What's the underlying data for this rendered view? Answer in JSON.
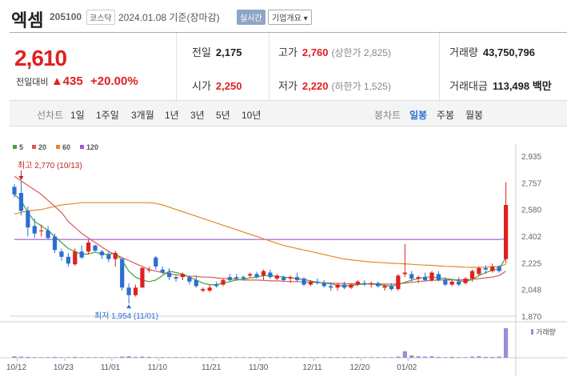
{
  "header": {
    "name": "엑셈",
    "code": "205100",
    "market": "코스닥",
    "date": "2024.01.08",
    "basis": "기준(장마감)",
    "realtime": "실시간",
    "company_info": "기업개요 ▾"
  },
  "quote": {
    "price": "2,610",
    "compare_label": "전일대비",
    "change": "▲435",
    "change_pct": "+20.00%",
    "prev_label": "전일",
    "prev": "2,175",
    "high_label": "고가",
    "high": "2,760",
    "upper_limit": "(상한가 2,825)",
    "volume_label": "거래량",
    "volume": "43,750,796",
    "open_label": "시가",
    "open": "2,250",
    "low_label": "저가",
    "low": "2,220",
    "lower_limit": "(하한가 1,525)",
    "amount_label": "거래대금",
    "amount": "113,498 백만"
  },
  "toolbar": {
    "line_chart": "선차트",
    "periods": [
      "1일",
      "1주일",
      "3개월",
      "1년",
      "3년",
      "5년",
      "10년"
    ],
    "candle_chart": "봉차트",
    "candle_periods": [
      "일봉",
      "주봉",
      "월봉"
    ],
    "selected_candle": "일봉"
  },
  "chart_data": {
    "type": "candlestick",
    "legend": [
      {
        "name": "5",
        "color": "#3aa53a"
      },
      {
        "name": "20",
        "color": "#e05555"
      },
      {
        "name": "60",
        "color": "#e08a2a"
      },
      {
        "name": "120",
        "color": "#9b59d0"
      }
    ],
    "y_ticks": [
      2935,
      2757,
      2580,
      2402,
      2225,
      2048,
      1870
    ],
    "ylim": [
      1870,
      2935
    ],
    "x_ticks": [
      "10/12",
      "10/23",
      "11/01",
      "11/10",
      "11/21",
      "11/30",
      "12/11",
      "12/20",
      "01/02"
    ],
    "annot_high": "최고 2,770 (10/13)",
    "annot_low": "최저 1,954 (11/01)",
    "volume_label": "거래량",
    "up_color": "#e02020",
    "down_color": "#2b6fd4",
    "candles": [
      {
        "o": 2730,
        "h": 2750,
        "l": 2660,
        "c": 2680
      },
      {
        "o": 2690,
        "h": 2770,
        "l": 2540,
        "c": 2570
      },
      {
        "o": 2570,
        "h": 2600,
        "l": 2400,
        "c": 2460
      },
      {
        "o": 2470,
        "h": 2520,
        "l": 2390,
        "c": 2420
      },
      {
        "o": 2440,
        "h": 2480,
        "l": 2400,
        "c": 2440
      },
      {
        "o": 2440,
        "h": 2470,
        "l": 2380,
        "c": 2390
      },
      {
        "o": 2400,
        "h": 2420,
        "l": 2290,
        "c": 2310
      },
      {
        "o": 2300,
        "h": 2320,
        "l": 2240,
        "c": 2265
      },
      {
        "o": 2265,
        "h": 2290,
        "l": 2200,
        "c": 2220
      },
      {
        "o": 2215,
        "h": 2320,
        "l": 2205,
        "c": 2300
      },
      {
        "o": 2300,
        "h": 2340,
        "l": 2250,
        "c": 2260
      },
      {
        "o": 2300,
        "h": 2380,
        "l": 2280,
        "c": 2360
      },
      {
        "o": 2340,
        "h": 2345,
        "l": 2300,
        "c": 2305
      },
      {
        "o": 2300,
        "h": 2310,
        "l": 2250,
        "c": 2275
      },
      {
        "o": 2280,
        "h": 2300,
        "l": 2230,
        "c": 2250
      },
      {
        "o": 2250,
        "h": 2305,
        "l": 2200,
        "c": 2290
      },
      {
        "o": 2250,
        "h": 2260,
        "l": 2040,
        "c": 2060
      },
      {
        "o": 2060,
        "h": 2090,
        "l": 1954,
        "c": 2010
      },
      {
        "o": 2010,
        "h": 2080,
        "l": 2000,
        "c": 2060
      },
      {
        "o": 2060,
        "h": 2200,
        "l": 2060,
        "c": 2190
      },
      {
        "o": 2180,
        "h": 2200,
        "l": 2160,
        "c": 2180
      },
      {
        "o": 2260,
        "h": 2270,
        "l": 2180,
        "c": 2200
      },
      {
        "o": 2180,
        "h": 2200,
        "l": 2150,
        "c": 2160
      },
      {
        "o": 2160,
        "h": 2190,
        "l": 2110,
        "c": 2130
      },
      {
        "o": 2130,
        "h": 2140,
        "l": 2100,
        "c": 2120
      },
      {
        "o": 2130,
        "h": 2160,
        "l": 2110,
        "c": 2150
      },
      {
        "o": 2130,
        "h": 2140,
        "l": 2080,
        "c": 2100
      },
      {
        "o": 2110,
        "h": 2140,
        "l": 2060,
        "c": 2070
      },
      {
        "o": 2040,
        "h": 2060,
        "l": 2030,
        "c": 2050
      },
      {
        "o": 2040,
        "h": 2080,
        "l": 2030,
        "c": 2060
      },
      {
        "o": 2080,
        "h": 2100,
        "l": 2060,
        "c": 2070
      },
      {
        "o": 2080,
        "h": 2120,
        "l": 2070,
        "c": 2110
      },
      {
        "o": 2130,
        "h": 2150,
        "l": 2100,
        "c": 2110
      },
      {
        "o": 2130,
        "h": 2150,
        "l": 2110,
        "c": 2120
      },
      {
        "o": 2130,
        "h": 2140,
        "l": 2110,
        "c": 2120
      },
      {
        "o": 2140,
        "h": 2160,
        "l": 2130,
        "c": 2150
      },
      {
        "o": 2150,
        "h": 2165,
        "l": 2120,
        "c": 2130
      },
      {
        "o": 2140,
        "h": 2180,
        "l": 2110,
        "c": 2170
      },
      {
        "o": 2160,
        "h": 2180,
        "l": 2120,
        "c": 2130
      },
      {
        "o": 2120,
        "h": 2150,
        "l": 2110,
        "c": 2140
      },
      {
        "o": 2130,
        "h": 2140,
        "l": 2100,
        "c": 2110
      },
      {
        "o": 2120,
        "h": 2140,
        "l": 2090,
        "c": 2130
      },
      {
        "o": 2130,
        "h": 2160,
        "l": 2100,
        "c": 2110
      },
      {
        "o": 2120,
        "h": 2130,
        "l": 2070,
        "c": 2080
      },
      {
        "o": 2080,
        "h": 2110,
        "l": 2070,
        "c": 2100
      },
      {
        "o": 2100,
        "h": 2120,
        "l": 2080,
        "c": 2090
      },
      {
        "o": 2090,
        "h": 2110,
        "l": 2060,
        "c": 2070
      },
      {
        "o": 2070,
        "h": 2090,
        "l": 2040,
        "c": 2060
      },
      {
        "o": 2060,
        "h": 2090,
        "l": 2040,
        "c": 2080
      },
      {
        "o": 2080,
        "h": 2100,
        "l": 2050,
        "c": 2060
      },
      {
        "o": 2060,
        "h": 2090,
        "l": 2050,
        "c": 2080
      },
      {
        "o": 2080,
        "h": 2110,
        "l": 2070,
        "c": 2100
      },
      {
        "o": 2090,
        "h": 2110,
        "l": 2070,
        "c": 2080
      },
      {
        "o": 2080,
        "h": 2100,
        "l": 2060,
        "c": 2090
      },
      {
        "o": 2090,
        "h": 2100,
        "l": 2060,
        "c": 2070
      },
      {
        "o": 2060,
        "h": 2080,
        "l": 2040,
        "c": 2070
      },
      {
        "o": 2070,
        "h": 2090,
        "l": 2040,
        "c": 2050
      },
      {
        "o": 2050,
        "h": 2150,
        "l": 2040,
        "c": 2140
      },
      {
        "o": 2150,
        "h": 2350,
        "l": 2130,
        "c": 2160
      },
      {
        "o": 2150,
        "h": 2170,
        "l": 2100,
        "c": 2120
      },
      {
        "o": 2120,
        "h": 2140,
        "l": 2090,
        "c": 2130
      },
      {
        "o": 2130,
        "h": 2160,
        "l": 2100,
        "c": 2110
      },
      {
        "o": 2110,
        "h": 2170,
        "l": 2100,
        "c": 2160
      },
      {
        "o": 2150,
        "h": 2170,
        "l": 2100,
        "c": 2110
      },
      {
        "o": 2110,
        "h": 2130,
        "l": 2070,
        "c": 2080
      },
      {
        "o": 2080,
        "h": 2110,
        "l": 2070,
        "c": 2100
      },
      {
        "o": 2100,
        "h": 2130,
        "l": 2070,
        "c": 2080
      },
      {
        "o": 2090,
        "h": 2130,
        "l": 2080,
        "c": 2120
      },
      {
        "o": 2120,
        "h": 2180,
        "l": 2100,
        "c": 2170
      },
      {
        "o": 2150,
        "h": 2200,
        "l": 2140,
        "c": 2190
      },
      {
        "o": 2190,
        "h": 2210,
        "l": 2150,
        "c": 2180
      },
      {
        "o": 2170,
        "h": 2220,
        "l": 2160,
        "c": 2200
      },
      {
        "o": 2200,
        "h": 2210,
        "l": 2160,
        "c": 2170
      },
      {
        "o": 2250,
        "h": 2760,
        "l": 2220,
        "c": 2610
      }
    ],
    "ma5": [
      2680,
      2640,
      2560,
      2500,
      2470,
      2440,
      2400,
      2360,
      2320,
      2300,
      2280,
      2285,
      2295,
      2285,
      2280,
      2290,
      2240,
      2170,
      2130,
      2110,
      2100,
      2110,
      2140,
      2170,
      2160,
      2150,
      2130,
      2110,
      2090,
      2080,
      2080,
      2090,
      2100,
      2110,
      2115,
      2125,
      2130,
      2140,
      2140,
      2135,
      2130,
      2125,
      2120,
      2115,
      2105,
      2095,
      2090,
      2085,
      2075,
      2070,
      2075,
      2080,
      2085,
      2085,
      2080,
      2075,
      2070,
      2080,
      2095,
      2110,
      2120,
      2130,
      2130,
      2125,
      2120,
      2115,
      2105,
      2100,
      2115,
      2140,
      2160,
      2175,
      2185,
      2260
    ],
    "ma20": [
      2800,
      2770,
      2740,
      2710,
      2680,
      2640,
      2600,
      2560,
      2500,
      2460,
      2420,
      2390,
      2360,
      2330,
      2300,
      2280,
      2260,
      2240,
      2220,
      2200,
      2180,
      2170,
      2160,
      2150,
      2145,
      2140,
      2135,
      2135,
      2130,
      2130,
      2125,
      2120,
      2120,
      2115,
      2110,
      2110,
      2110,
      2108,
      2105,
      2105,
      2102,
      2100,
      2100,
      2098,
      2096,
      2094,
      2092,
      2090,
      2088,
      2086,
      2085,
      2085,
      2085,
      2085,
      2085,
      2084,
      2083,
      2085,
      2090,
      2095,
      2100,
      2105,
      2108,
      2110,
      2110,
      2112,
      2112,
      2112,
      2115,
      2120,
      2125,
      2130,
      2140,
      2170
    ],
    "ma60": [
      2550,
      2560,
      2570,
      2575,
      2580,
      2590,
      2600,
      2610,
      2615,
      2620,
      2625,
      2625,
      2625,
      2625,
      2625,
      2625,
      2625,
      2625,
      2625,
      2625,
      2625,
      2620,
      2610,
      2595,
      2580,
      2565,
      2550,
      2535,
      2520,
      2505,
      2490,
      2475,
      2460,
      2445,
      2430,
      2415,
      2400,
      2385,
      2370,
      2355,
      2340,
      2330,
      2320,
      2310,
      2300,
      2290,
      2280,
      2270,
      2260,
      2250,
      2245,
      2240,
      2235,
      2230,
      2228,
      2225,
      2222,
      2220,
      2218,
      2215,
      2212,
      2210,
      2208,
      2205,
      2202,
      2200,
      2198,
      2196,
      2195,
      2195,
      2196,
      2198,
      2200,
      2215
    ],
    "ma120": [
      2380,
      2380,
      2380,
      2380,
      2380,
      2380,
      2380,
      2380,
      2380,
      2380,
      2380,
      2380,
      2380,
      2380,
      2380,
      2380,
      2380,
      2380,
      2380,
      2380,
      2380,
      2380,
      2380,
      2380,
      2380,
      2380,
      2380,
      2380,
      2380,
      2380,
      2380,
      2380,
      2380,
      2380,
      2380,
      2380,
      2380,
      2380,
      2380,
      2380,
      2380,
      2380,
      2380,
      2380,
      2380,
      2380,
      2380,
      2380,
      2380,
      2380,
      2380,
      2380,
      2380,
      2380,
      2380,
      2380,
      2380,
      2380,
      2380,
      2380,
      2380,
      2380,
      2380,
      2380,
      2380,
      2380,
      2380,
      2380,
      2380,
      2380,
      2380,
      2380,
      2380,
      2385
    ],
    "volume": [
      0.05,
      0.04,
      0.03,
      0.02,
      0.02,
      0.02,
      0.03,
      0.02,
      0.02,
      0.03,
      0.02,
      0.02,
      0.02,
      0.02,
      0.02,
      0.02,
      0.04,
      0.05,
      0.03,
      0.04,
      0.03,
      0.02,
      0.02,
      0.02,
      0.02,
      0.02,
      0.02,
      0.02,
      0.02,
      0.02,
      0.02,
      0.02,
      0.02,
      0.02,
      0.02,
      0.02,
      0.02,
      0.02,
      0.02,
      0.02,
      0.02,
      0.02,
      0.02,
      0.02,
      0.02,
      0.02,
      0.02,
      0.02,
      0.02,
      0.02,
      0.02,
      0.02,
      0.02,
      0.02,
      0.02,
      0.02,
      0.02,
      0.04,
      0.22,
      0.08,
      0.05,
      0.04,
      0.05,
      0.03,
      0.02,
      0.03,
      0.02,
      0.02,
      0.04,
      0.05,
      0.03,
      0.03,
      0.04,
      1.0
    ]
  }
}
